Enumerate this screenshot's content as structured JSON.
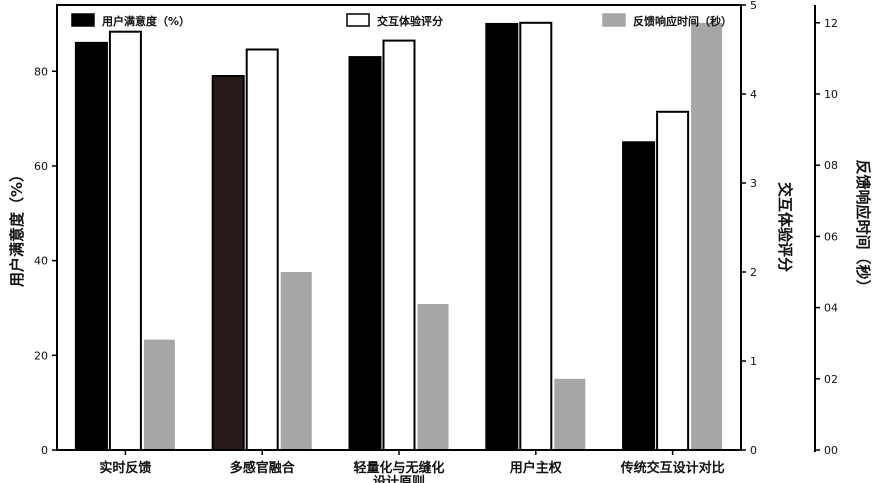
{
  "chart_data": {
    "type": "bar",
    "title": "",
    "categories": [
      "实时反馈",
      "多感官融合",
      "轻量化与无缝化设计原则",
      "用户主权",
      "传统交互设计对比"
    ],
    "series": [
      {
        "name": "用户满意度（%）",
        "axis": "left",
        "color": "#000000",
        "values": [
          86,
          79,
          83,
          90,
          65
        ]
      },
      {
        "name": "交互体验评分",
        "axis": "right1",
        "color": "#ffffff",
        "values": [
          4.7,
          4.5,
          4.6,
          4.8,
          3.8
        ]
      },
      {
        "name": "反馈响应时间（秒）",
        "axis": "right2",
        "color": "#a6a6a6",
        "values": [
          0.31,
          0.5,
          0.41,
          0.2,
          1.2
        ]
      }
    ],
    "highlight_color": "#2a1b1b",
    "axes": {
      "left": {
        "label": "用户满意度（%）",
        "ylim": [
          0,
          94
        ],
        "ticks": [
          "0",
          "20",
          "40",
          "60",
          "80"
        ]
      },
      "right1": {
        "label": "交互体验评分",
        "ylim": [
          0,
          5
        ],
        "ticks": [
          "0",
          "1",
          "2",
          "3",
          "4",
          "5"
        ]
      },
      "right2": {
        "label": "反馈响应时间（秒）",
        "ylim": [
          0,
          1.25
        ],
        "ticks": [
          "00",
          "02",
          "04",
          "06",
          "08",
          "10",
          "12"
        ]
      }
    },
    "legend": {
      "position": "top"
    },
    "grid": false
  }
}
